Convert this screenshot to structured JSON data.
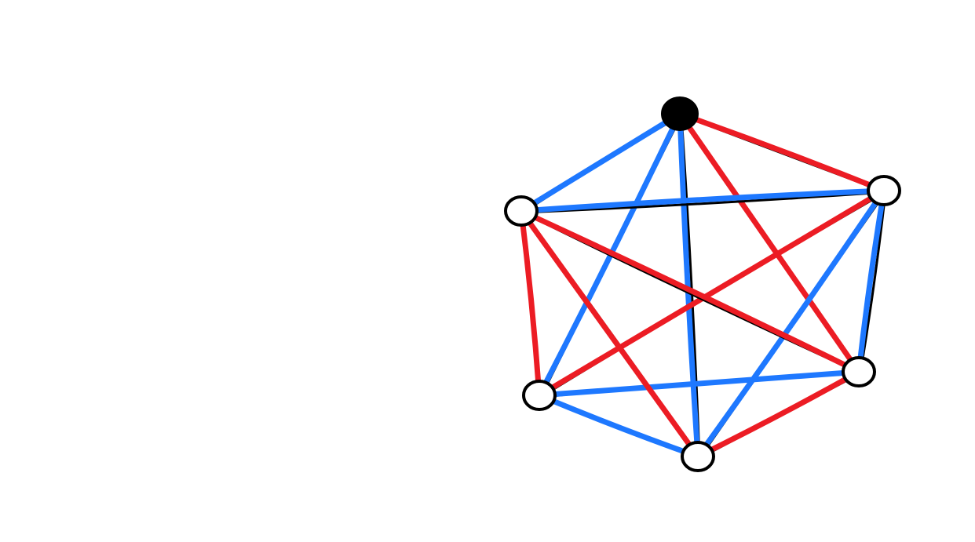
{
  "diagram": {
    "type": "complete-graph-edge-coloring",
    "colors": {
      "red": "#ec1c24",
      "blue": "#1e78ff",
      "outline": "#000000",
      "background": "#ffffff"
    },
    "vertices": [
      {
        "id": "top",
        "filled": true
      },
      {
        "id": "upper-right",
        "filled": false
      },
      {
        "id": "lower-right",
        "filled": false
      },
      {
        "id": "bottom",
        "filled": false
      },
      {
        "id": "lower-left",
        "filled": false
      },
      {
        "id": "upper-left",
        "filled": false
      }
    ],
    "edges": [
      {
        "from": "top",
        "to": "upper-right",
        "color": "red"
      },
      {
        "from": "top",
        "to": "lower-right",
        "color": "red"
      },
      {
        "from": "top",
        "to": "bottom",
        "color": "blue"
      },
      {
        "from": "top",
        "to": "lower-left",
        "color": "blue"
      },
      {
        "from": "top",
        "to": "upper-left",
        "color": "blue"
      },
      {
        "from": "upper-right",
        "to": "lower-right",
        "color": "blue"
      },
      {
        "from": "upper-right",
        "to": "bottom",
        "color": "blue"
      },
      {
        "from": "upper-right",
        "to": "lower-left",
        "color": "red"
      },
      {
        "from": "upper-right",
        "to": "upper-left",
        "color": "blue"
      },
      {
        "from": "lower-right",
        "to": "bottom",
        "color": "red"
      },
      {
        "from": "lower-right",
        "to": "lower-left",
        "color": "blue"
      },
      {
        "from": "lower-right",
        "to": "upper-left",
        "color": "red"
      },
      {
        "from": "bottom",
        "to": "lower-left",
        "color": "blue"
      },
      {
        "from": "bottom",
        "to": "upper-left",
        "color": "red"
      },
      {
        "from": "lower-left",
        "to": "upper-left",
        "color": "red"
      }
    ]
  }
}
